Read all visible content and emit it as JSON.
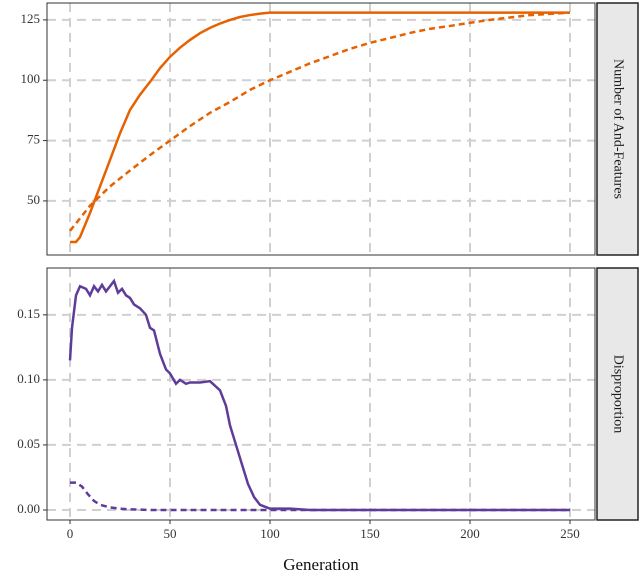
{
  "chart_data": [
    {
      "type": "line",
      "strip": "Number of And-Features",
      "xlim": [
        -11.5,
        262.5
      ],
      "xticks": [
        0,
        50,
        100,
        150,
        200,
        250
      ],
      "show_xtick_labels": false,
      "ylim": [
        27.6,
        132
      ],
      "yticks": [
        50,
        75,
        100,
        125
      ],
      "grid": true,
      "series": [
        {
          "color": "#e66101",
          "line_style": "solid",
          "x": [
            0,
            3,
            5,
            10,
            15,
            20,
            25,
            30,
            35,
            40,
            45,
            50,
            55,
            60,
            65,
            70,
            75,
            80,
            85,
            90,
            95,
            100,
            110,
            150,
            200,
            250
          ],
          "values": [
            33,
            33,
            35,
            45,
            56,
            67,
            78,
            87.7,
            94,
            99.3,
            105,
            109.7,
            113.5,
            116.7,
            119.5,
            121.7,
            123.5,
            125,
            126.2,
            127,
            127.6,
            128,
            128,
            128,
            128,
            128
          ]
        },
        {
          "color": "#e66101",
          "line_style": "dashed",
          "x": [
            0,
            10,
            20,
            30,
            40,
            50,
            60,
            70,
            80,
            90,
            100,
            110,
            120,
            130,
            140,
            150,
            160,
            170,
            180,
            190,
            200,
            210,
            220,
            230,
            240,
            250
          ],
          "values": [
            37.6,
            48,
            56,
            62.6,
            69,
            75,
            81,
            86.5,
            91,
            96,
            100,
            103.5,
            107,
            110,
            113,
            115.5,
            117.5,
            119.6,
            121.3,
            122.5,
            123.8,
            125,
            126,
            127,
            127.5,
            128
          ]
        }
      ]
    },
    {
      "type": "line",
      "strip": "Disproportion",
      "x_label": "Generation",
      "xlim": [
        -11.5,
        262.5
      ],
      "xticks": [
        0,
        50,
        100,
        150,
        200,
        250
      ],
      "show_xtick_labels": true,
      "ylim": [
        -0.0077,
        0.186
      ],
      "yticks": [
        {
          "value": 0,
          "label": "0.00"
        },
        {
          "value": 0.05,
          "label": "0.05"
        },
        {
          "value": 0.1,
          "label": "0.10"
        },
        {
          "value": 0.15,
          "label": "0.15"
        }
      ],
      "grid": true,
      "series": [
        {
          "color": "#5e3c99",
          "line_style": "solid",
          "x": [
            0,
            1,
            3,
            5,
            8,
            10,
            12,
            14,
            16,
            18,
            20,
            22,
            24,
            26,
            28,
            30,
            32,
            35,
            38,
            40,
            42,
            45,
            48,
            50,
            53,
            55,
            58,
            60,
            65,
            70,
            75,
            78,
            80,
            83,
            86,
            89,
            92,
            95,
            100,
            110,
            120,
            250
          ],
          "values": [
            0.115,
            0.14,
            0.165,
            0.172,
            0.17,
            0.165,
            0.172,
            0.168,
            0.173,
            0.168,
            0.172,
            0.176,
            0.167,
            0.17,
            0.165,
            0.163,
            0.158,
            0.155,
            0.15,
            0.14,
            0.138,
            0.12,
            0.108,
            0.105,
            0.097,
            0.1,
            0.097,
            0.098,
            0.098,
            0.099,
            0.092,
            0.08,
            0.065,
            0.05,
            0.035,
            0.02,
            0.01,
            0.004,
            0.001,
            0.001,
            0,
            0
          ]
        },
        {
          "color": "#5e3c99",
          "line_style": "dashed",
          "x": [
            0,
            3,
            6,
            9,
            12,
            15,
            20,
            25,
            30,
            40,
            250
          ],
          "values": [
            0.021,
            0.021,
            0.018,
            0.012,
            0.007,
            0.004,
            0.002,
            0.001,
            0.0005,
            0,
            0
          ]
        }
      ]
    }
  ]
}
